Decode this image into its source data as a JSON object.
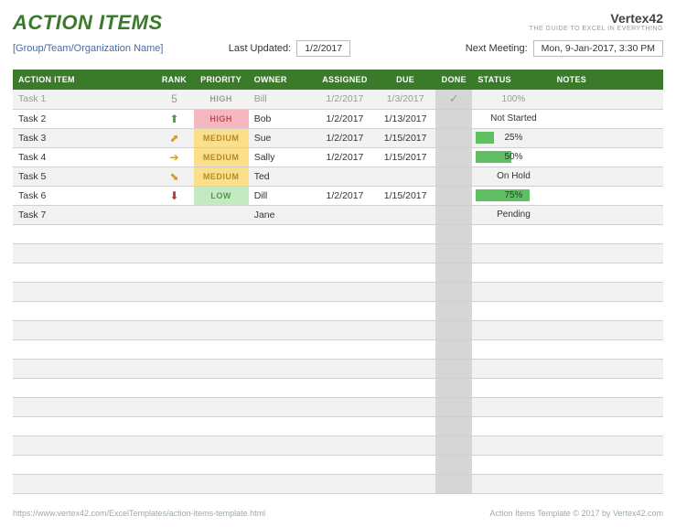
{
  "title": "ACTION ITEMS",
  "logo": {
    "name": "Vertex42",
    "tagline": "THE GUIDE TO EXCEL IN EVERYTHING"
  },
  "meta": {
    "org_placeholder": "[Group/Team/Organization Name]",
    "last_updated_label": "Last Updated:",
    "last_updated_value": "1/2/2017",
    "next_meeting_label": "Next Meeting:",
    "next_meeting_value": "Mon, 9-Jan-2017, 3:30 PM"
  },
  "columns": {
    "action_item": "ACTION ITEM",
    "rank": "RANK",
    "priority": "PRIORITY",
    "owner": "OWNER",
    "assigned": "ASSIGNED",
    "due": "DUE",
    "done": "DONE",
    "status": "STATUS",
    "notes": "NOTES"
  },
  "col_widths": {
    "action_item": 155,
    "rank": 42,
    "priority": 60,
    "owner": 72,
    "assigned": 66,
    "due": 66,
    "done": 40,
    "status": 86,
    "notes": 122
  },
  "colors": {
    "header_green": "#3b7a2a",
    "row_alt": "#f2f2f2",
    "done_col": "#d6d6d6",
    "bar_fill": "#5fbf63",
    "prio_high_bg": "#f5b7c0",
    "prio_high_fg": "#c24a5a",
    "prio_med_bg": "#fcdf8a",
    "prio_med_fg": "#b58a2a",
    "prio_low_bg": "#c5e9c2",
    "prio_low_fg": "#4d9a4a"
  },
  "rank_icons": {
    "5": "5",
    "up_green": "⬆",
    "up_right_orange": "⬈",
    "right_orange": "➔",
    "down_right_orange": "⬊",
    "down_red": "⬇"
  },
  "rows": [
    {
      "item": "Task 1",
      "rank": "5",
      "rank_color": "#999",
      "priority": "HIGH",
      "prio_class": "",
      "owner": "Bill",
      "assigned": "1/2/2017",
      "due": "1/3/2017",
      "done": "✓",
      "status_pct": 100,
      "status_text": "100%",
      "completed": true
    },
    {
      "item": "Task 2",
      "rank": "⬆",
      "rank_color": "#3fa04a",
      "priority": "HIGH",
      "prio_class": "prio-high",
      "owner": "Bob",
      "assigned": "1/2/2017",
      "due": "1/13/2017",
      "done": "",
      "status_pct": 0,
      "status_text": "Not Started",
      "completed": false
    },
    {
      "item": "Task 3",
      "rank": "⬈",
      "rank_color": "#d89a2a",
      "priority": "MEDIUM",
      "prio_class": "prio-medium",
      "owner": "Sue",
      "assigned": "1/2/2017",
      "due": "1/15/2017",
      "done": "",
      "status_pct": 25,
      "status_text": "25%",
      "completed": false
    },
    {
      "item": "Task 4",
      "rank": "➔",
      "rank_color": "#d89a2a",
      "priority": "MEDIUM",
      "prio_class": "prio-medium",
      "owner": "Sally",
      "assigned": "1/2/2017",
      "due": "1/15/2017",
      "done": "",
      "status_pct": 50,
      "status_text": "50%",
      "completed": false
    },
    {
      "item": "Task 5",
      "rank": "⬊",
      "rank_color": "#d89a2a",
      "priority": "MEDIUM",
      "prio_class": "prio-medium",
      "owner": "Ted",
      "assigned": "",
      "due": "",
      "done": "",
      "status_pct": 0,
      "status_text": "On Hold",
      "completed": false
    },
    {
      "item": "Task 6",
      "rank": "⬇",
      "rank_color": "#b03a2a",
      "priority": "LOW",
      "prio_class": "prio-low",
      "owner": "Dill",
      "assigned": "1/2/2017",
      "due": "1/15/2017",
      "done": "",
      "status_pct": 75,
      "status_text": "75%",
      "completed": false
    },
    {
      "item": "Task 7",
      "rank": "",
      "rank_color": "",
      "priority": "",
      "prio_class": "",
      "owner": "Jane",
      "assigned": "",
      "due": "",
      "done": "",
      "status_pct": 0,
      "status_text": "Pending",
      "completed": false
    }
  ],
  "empty_row_count": 14,
  "footer": {
    "url": "https://www.vertex42.com/ExcelTemplates/action-items-template.html",
    "copyright": "Action Items Template © 2017 by Vertex42.com"
  }
}
